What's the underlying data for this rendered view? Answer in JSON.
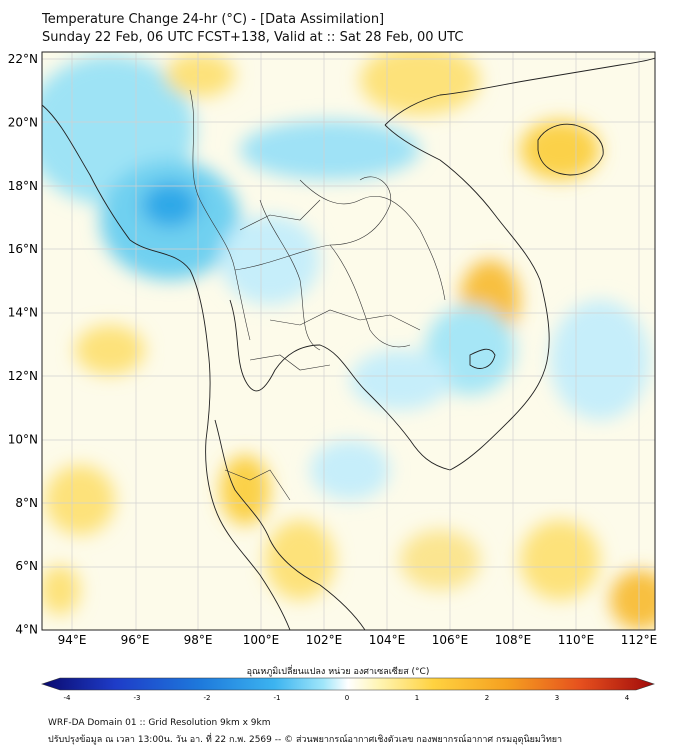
{
  "title_line1": "Temperature Change 24-hr (°C) - [Data Assimilation]",
  "title_line2": "Sunday 22 Feb, 06 UTC FCST+138, Valid at :: Sat 28 Feb, 00 UTC",
  "lat_labels": [
    "22°N",
    "20°N",
    "18°N",
    "16°N",
    "14°N",
    "12°N",
    "10°N",
    "8°N",
    "6°N",
    "4°N"
  ],
  "lon_labels": [
    "94°E",
    "96°E",
    "98°E",
    "100°E",
    "102°E",
    "104°E",
    "106°E",
    "108°E",
    "110°E",
    "112°E"
  ],
  "colorbar": {
    "title": "อุณหภูมิเปลี่ยนแปลง หน่วย องศาเซลเซียส (°C)",
    "ticks": [
      "-4",
      "-3",
      "-2",
      "-1",
      "0",
      "1",
      "2",
      "3",
      "4"
    ],
    "colors": [
      "#0a0a6e",
      "#1e3cc8",
      "#1e7adc",
      "#3cb4f0",
      "#a0e6fa",
      "#ffffff",
      "#fff5b4",
      "#ffd240",
      "#f5a020",
      "#e6501e",
      "#a00a0a"
    ]
  },
  "footer_line1": "WRF-DA Domain 01 :: Grid Resolution 9km x 9km",
  "footer_line2": "ปรับปรุงข้อมูล ณ เวลา 13:00น. วัน อา. ที่ 22 ก.พ. 2569 -- © ส่วนพยากรณ์อากาศเชิงตัวเลข กองพยากรณ์อากาศ กรมอุตุนิยมวิทยา"
}
